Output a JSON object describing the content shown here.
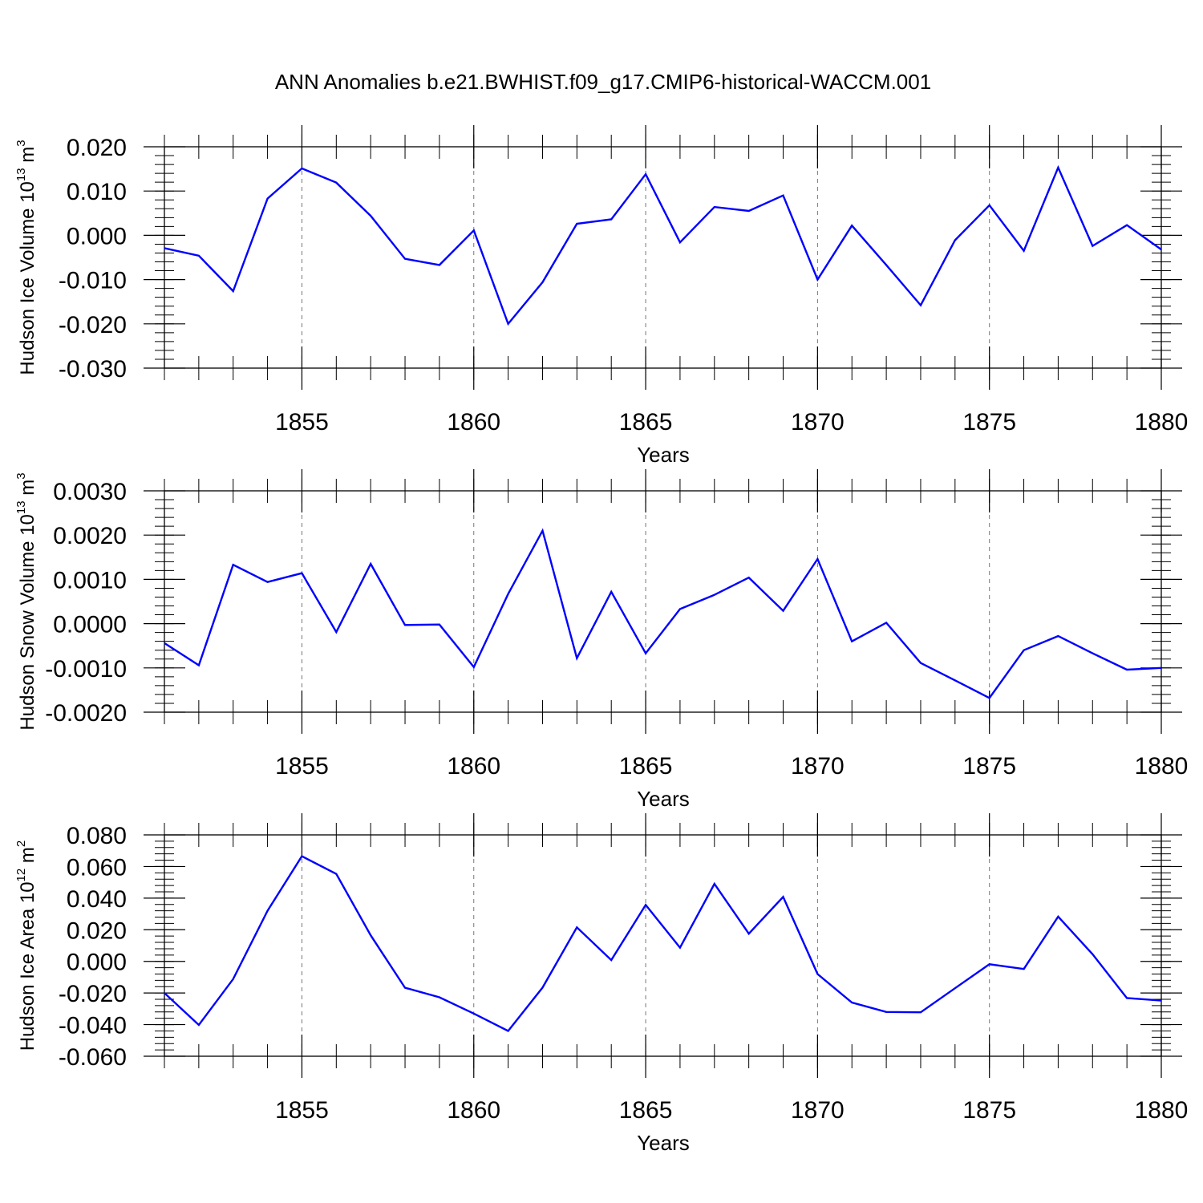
{
  "title": "ANN Anomalies b.e21.BWHIST.f09_g17.CMIP6-historical-WACCM.001",
  "line_color": "#0000ff",
  "chart_data": [
    {
      "type": "line",
      "ylabel_base": "Hudson Ice Volume 10",
      "ylabel_exp": "13",
      "ylabel_unit": " m",
      "ylabel_unit_exp": "3",
      "xlabel": "Years",
      "xlim": [
        1851,
        1880
      ],
      "ylim": [
        -0.03,
        0.02
      ],
      "ytick_values": [
        0.02,
        0.01,
        0.0,
        -0.01,
        -0.02,
        -0.03
      ],
      "ytick_labels": [
        "0.020",
        "0.010",
        "0.000",
        "-0.010",
        "-0.020",
        "-0.030"
      ],
      "xtick_values": [
        1855,
        1860,
        1865,
        1870,
        1875,
        1880
      ],
      "xtick_labels": [
        "1855",
        "1860",
        "1865",
        "1870",
        "1875",
        "1880"
      ],
      "x": [
        1851,
        1852,
        1853,
        1854,
        1855,
        1856,
        1857,
        1858,
        1859,
        1860,
        1861,
        1862,
        1863,
        1864,
        1865,
        1866,
        1867,
        1868,
        1869,
        1870,
        1871,
        1872,
        1873,
        1874,
        1875,
        1876,
        1877,
        1878,
        1879,
        1880
      ],
      "y": [
        -0.0029,
        -0.0046,
        -0.0126,
        0.0083,
        0.0151,
        0.0119,
        0.0044,
        -0.0053,
        -0.0067,
        0.0011,
        -0.02,
        -0.0106,
        0.0026,
        0.0036,
        0.0138,
        -0.0016,
        0.0064,
        0.0055,
        0.009,
        -0.01,
        0.0022,
        -0.0067,
        -0.0158,
        -0.0011,
        0.0068,
        -0.0035,
        0.0153,
        -0.0024,
        0.0023,
        -0.0032
      ]
    },
    {
      "type": "line",
      "ylabel_base": "Hudson Snow Volume 10",
      "ylabel_exp": "13",
      "ylabel_unit": " m",
      "ylabel_unit_exp": "3",
      "xlabel": "Years",
      "xlim": [
        1851,
        1880
      ],
      "ylim": [
        -0.002,
        0.003
      ],
      "ytick_values": [
        0.003,
        0.002,
        0.001,
        0.0,
        -0.001,
        -0.002
      ],
      "ytick_labels": [
        "0.0030",
        "0.0020",
        "0.0010",
        "0.0000",
        "-0.0010",
        "-0.0020"
      ],
      "xtick_values": [
        1855,
        1860,
        1865,
        1870,
        1875,
        1880
      ],
      "xtick_labels": [
        "1855",
        "1860",
        "1865",
        "1870",
        "1875",
        "1880"
      ],
      "x": [
        1851,
        1852,
        1853,
        1854,
        1855,
        1856,
        1857,
        1858,
        1859,
        1860,
        1861,
        1862,
        1863,
        1864,
        1865,
        1866,
        1867,
        1868,
        1869,
        1870,
        1871,
        1872,
        1873,
        1874,
        1875,
        1876,
        1877,
        1878,
        1879,
        1880
      ],
      "y": [
        -0.00044,
        -0.00094,
        0.00133,
        0.00094,
        0.00114,
        -0.00019,
        0.00135,
        -3e-05,
        -2e-05,
        -0.00098,
        0.00067,
        0.0021,
        -0.00078,
        0.00072,
        -0.00067,
        0.00033,
        0.00065,
        0.00104,
        0.00029,
        0.00146,
        -0.0004,
        2e-05,
        -0.00089,
        -0.00128,
        -0.00168,
        -0.0006,
        -0.00028,
        -0.00067,
        -0.00104,
        -0.001
      ]
    },
    {
      "type": "line",
      "ylabel_base": "Hudson Ice Area 10",
      "ylabel_exp": "12",
      "ylabel_unit": " m",
      "ylabel_unit_exp": "2",
      "xlabel": "Years",
      "xlim": [
        1851,
        1880
      ],
      "ylim": [
        -0.06,
        0.08
      ],
      "ytick_values": [
        0.08,
        0.06,
        0.04,
        0.02,
        0.0,
        -0.02,
        -0.04,
        -0.06
      ],
      "ytick_labels": [
        "0.080",
        "0.060",
        "0.040",
        "0.020",
        "0.000",
        "-0.020",
        "-0.040",
        "-0.060"
      ],
      "xtick_values": [
        1855,
        1860,
        1865,
        1870,
        1875,
        1880
      ],
      "xtick_labels": [
        "1855",
        "1860",
        "1865",
        "1870",
        "1875",
        "1880"
      ],
      "x": [
        1851,
        1852,
        1853,
        1854,
        1855,
        1856,
        1857,
        1858,
        1859,
        1860,
        1861,
        1862,
        1863,
        1864,
        1865,
        1866,
        1867,
        1868,
        1869,
        1870,
        1871,
        1872,
        1873,
        1874,
        1875,
        1876,
        1877,
        1878,
        1879,
        1880
      ],
      "y": [
        -0.02,
        -0.0402,
        -0.0112,
        0.032,
        0.0665,
        0.0553,
        0.0165,
        -0.0167,
        -0.0227,
        -0.033,
        -0.044,
        -0.0166,
        0.0215,
        0.0008,
        0.0357,
        0.0087,
        0.049,
        0.0175,
        0.0408,
        -0.008,
        -0.026,
        -0.032,
        -0.0322,
        -0.017,
        -0.0018,
        -0.0048,
        0.0283,
        0.0045,
        -0.0232,
        -0.0248
      ]
    }
  ]
}
